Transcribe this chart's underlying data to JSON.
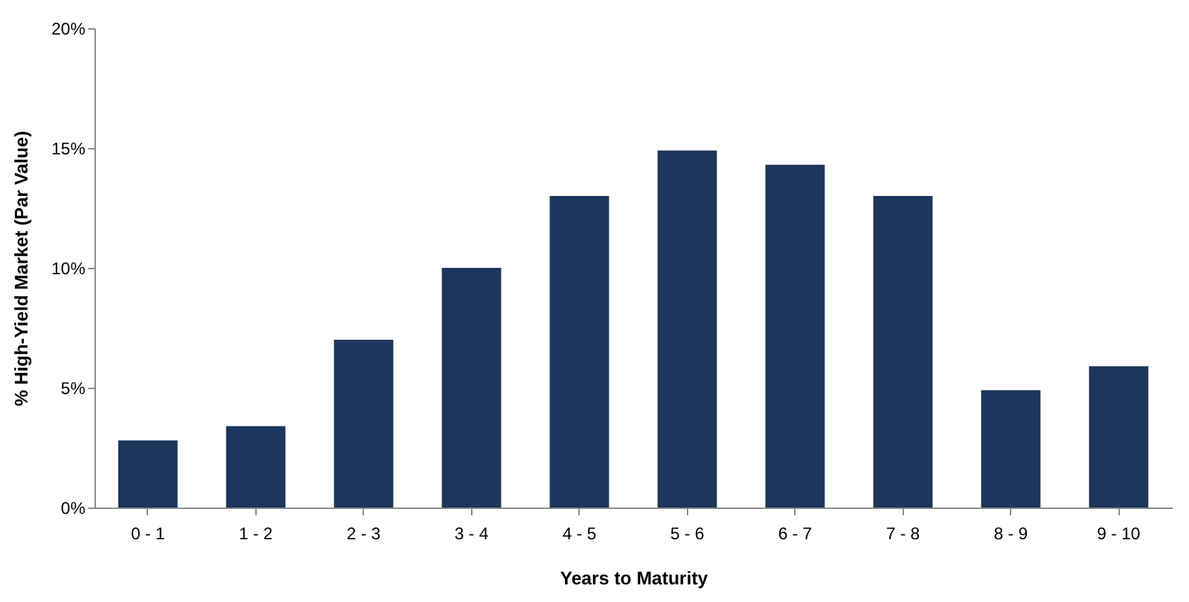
{
  "chart_data": {
    "type": "bar",
    "xlabel": "Years to Maturity",
    "ylabel": "% High-Yield Market (Par Value)",
    "categories": [
      "0 - 1",
      "1 - 2",
      "2 - 3",
      "3 - 4",
      "4 - 5",
      "5 - 6",
      "6 - 7",
      "7 - 8",
      "8 - 9",
      "9 - 10"
    ],
    "values": [
      2.8,
      3.4,
      7,
      10,
      13,
      14.9,
      14.3,
      13,
      4.9,
      5.9
    ],
    "color": "#1c365c",
    "ylim": [
      0,
      20
    ],
    "yticks": [
      {
        "value": 0,
        "label": "0%"
      },
      {
        "value": 5,
        "label": "5%"
      },
      {
        "value": 10,
        "label": "10%"
      },
      {
        "value": 15,
        "label": "15%"
      },
      {
        "value": 20,
        "label": "20%"
      }
    ],
    "grid": false
  }
}
